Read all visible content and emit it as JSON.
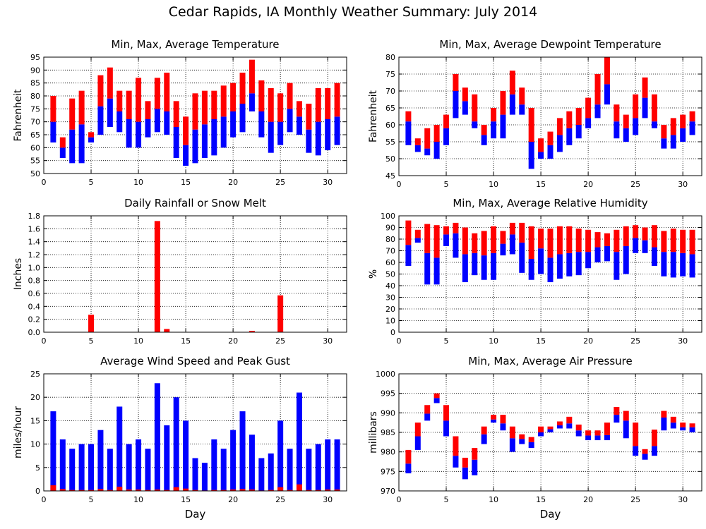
{
  "title": "Cedar Rapids, IA Monthly Weather Summary: July 2014",
  "chart_data": [
    {
      "type": "bar",
      "title": "Min, Max, Average Temperature",
      "ylabel": "Fahrenheit",
      "xlabel": "",
      "xlim": [
        0,
        32
      ],
      "ylim": [
        50,
        95
      ],
      "xticks": [
        0,
        5,
        10,
        15,
        20,
        25,
        30
      ],
      "yticks": [
        50,
        55,
        60,
        65,
        70,
        75,
        80,
        85,
        90,
        95
      ],
      "grid": true,
      "x": [
        1,
        2,
        3,
        4,
        5,
        6,
        7,
        8,
        9,
        10,
        11,
        12,
        13,
        14,
        15,
        16,
        17,
        18,
        19,
        20,
        21,
        22,
        23,
        24,
        25,
        26,
        27,
        28,
        29,
        30,
        31
      ],
      "min": [
        62,
        56,
        54,
        54,
        62,
        65,
        68,
        66,
        60,
        60,
        64,
        66,
        65,
        56,
        53,
        54,
        56,
        57,
        60,
        64,
        66,
        74,
        64,
        58,
        61,
        66,
        65,
        58,
        57,
        59,
        61
      ],
      "avg": [
        70,
        60,
        67,
        69,
        64,
        76,
        79,
        74,
        71,
        70,
        71,
        75,
        74,
        68,
        61,
        67,
        69,
        71,
        72,
        74,
        77,
        81,
        74,
        70,
        70,
        75,
        72,
        67,
        70,
        71,
        72
      ],
      "max": [
        80,
        64,
        79,
        82,
        66,
        88,
        91,
        82,
        82,
        87,
        78,
        87,
        89,
        78,
        72,
        81,
        82,
        82,
        84,
        85,
        89,
        94,
        86,
        83,
        81,
        85,
        78,
        77,
        83,
        83,
        85
      ],
      "colors": {
        "upper": "#ff0000",
        "lower": "#0000ff"
      }
    },
    {
      "type": "bar",
      "title": "Min, Max, Average Dewpoint Temperature",
      "ylabel": "Fahrenheit",
      "xlabel": "",
      "xlim": [
        0,
        32
      ],
      "ylim": [
        45,
        80
      ],
      "xticks": [
        0,
        5,
        10,
        15,
        20,
        25,
        30
      ],
      "yticks": [
        45,
        50,
        55,
        60,
        65,
        70,
        75,
        80
      ],
      "grid": true,
      "x": [
        1,
        2,
        3,
        4,
        5,
        6,
        7,
        8,
        9,
        10,
        11,
        12,
        13,
        14,
        15,
        16,
        17,
        18,
        19,
        20,
        21,
        22,
        23,
        24,
        25,
        26,
        27,
        28,
        29,
        30,
        31
      ],
      "min": [
        54,
        52,
        51,
        50,
        54,
        62,
        63,
        59,
        54,
        56,
        56,
        63,
        63,
        47,
        50,
        50,
        52,
        54,
        56,
        59,
        62,
        66,
        56,
        55,
        57,
        62,
        59,
        53,
        53,
        55,
        57
      ],
      "avg": [
        61,
        54,
        53,
        55,
        59,
        70,
        67,
        61,
        57,
        61,
        63,
        69,
        66,
        55,
        52,
        54,
        57,
        59,
        60,
        62,
        66,
        72,
        61,
        59,
        62,
        68,
        61,
        56,
        57,
        59,
        61
      ],
      "max": [
        64,
        56,
        59,
        60,
        63,
        75,
        71,
        69,
        60,
        65,
        70,
        76,
        71,
        65,
        56,
        58,
        62,
        64,
        65,
        68,
        75,
        80,
        66,
        63,
        69,
        74,
        69,
        60,
        62,
        63,
        64
      ],
      "colors": {
        "upper": "#ff0000",
        "lower": "#0000ff"
      }
    },
    {
      "type": "bar",
      "title": "Daily Rainfall or Snow Melt",
      "ylabel": "Inches",
      "xlabel": "",
      "xlim": [
        0,
        32
      ],
      "ylim": [
        0,
        1.8
      ],
      "xticks": [
        0,
        5,
        10,
        15,
        20,
        25,
        30
      ],
      "yticks": [
        0.0,
        0.2,
        0.4,
        0.6,
        0.8,
        1.0,
        1.2,
        1.4,
        1.6,
        1.8
      ],
      "ytick_labels": [
        "0.0",
        "0.2",
        "0.4",
        "0.6",
        "0.8",
        "1.0",
        "1.2",
        "1.4",
        "1.6",
        "1.8"
      ],
      "grid": true,
      "x": [
        1,
        2,
        3,
        4,
        5,
        6,
        7,
        8,
        9,
        10,
        11,
        12,
        13,
        14,
        15,
        16,
        17,
        18,
        19,
        20,
        21,
        22,
        23,
        24,
        25,
        26,
        27,
        28,
        29,
        30,
        31
      ],
      "values": [
        0,
        0,
        0,
        0,
        0.27,
        0,
        0,
        0,
        0,
        0,
        0,
        1.72,
        0.05,
        0,
        0,
        0,
        0,
        0,
        0,
        0,
        0,
        0.02,
        0,
        0,
        0.57,
        0,
        0,
        0,
        0,
        0,
        0
      ],
      "colors": {
        "bar": "#ff0000"
      }
    },
    {
      "type": "bar",
      "title": "Min, Max, Average Relative Humidity",
      "ylabel": "%",
      "xlabel": "",
      "xlim": [
        0,
        32
      ],
      "ylim": [
        0,
        100
      ],
      "xticks": [
        0,
        5,
        10,
        15,
        20,
        25,
        30
      ],
      "yticks": [
        0,
        10,
        20,
        30,
        40,
        50,
        60,
        70,
        80,
        90,
        100
      ],
      "grid": true,
      "x": [
        1,
        2,
        3,
        4,
        5,
        6,
        7,
        8,
        9,
        10,
        11,
        12,
        13,
        14,
        15,
        16,
        17,
        18,
        19,
        20,
        21,
        22,
        23,
        24,
        25,
        26,
        27,
        28,
        29,
        30,
        31
      ],
      "min": [
        57,
        77,
        41,
        41,
        74,
        64,
        43,
        49,
        45,
        45,
        66,
        67,
        51,
        45,
        50,
        43,
        46,
        48,
        49,
        55,
        60,
        61,
        45,
        50,
        68,
        68,
        57,
        48,
        47,
        48,
        47
      ],
      "avg": [
        75,
        81,
        68,
        64,
        84,
        85,
        67,
        68,
        66,
        68,
        76,
        84,
        77,
        63,
        72,
        64,
        67,
        68,
        69,
        69,
        73,
        74,
        69,
        74,
        81,
        79,
        73,
        69,
        69,
        68,
        67
      ],
      "max": [
        96,
        88,
        93,
        92,
        91,
        94,
        90,
        85,
        87,
        91,
        87,
        94,
        94,
        91,
        89,
        89,
        91,
        91,
        89,
        88,
        86,
        85,
        88,
        91,
        92,
        90,
        92,
        87,
        89,
        88,
        88
      ],
      "colors": {
        "upper": "#ff0000",
        "lower": "#0000ff"
      }
    },
    {
      "type": "bar",
      "title": "Average Wind Speed and Peak Gust",
      "ylabel": "miles/hour",
      "xlabel": "Day",
      "xlim": [
        0,
        32
      ],
      "ylim": [
        0,
        25
      ],
      "xticks": [
        0,
        5,
        10,
        15,
        20,
        25,
        30
      ],
      "yticks": [
        0,
        5,
        10,
        15,
        20,
        25
      ],
      "grid": true,
      "x": [
        1,
        2,
        3,
        4,
        5,
        6,
        7,
        8,
        9,
        10,
        11,
        12,
        13,
        14,
        15,
        16,
        17,
        18,
        19,
        20,
        21,
        22,
        23,
        24,
        25,
        26,
        27,
        28,
        29,
        30,
        31
      ],
      "peak_gust": [
        17,
        11,
        9,
        10,
        10,
        13,
        9,
        18,
        10,
        11,
        9,
        23,
        14,
        20,
        15,
        7,
        6,
        11,
        9,
        13,
        17,
        12,
        7,
        8,
        15,
        9,
        21,
        9,
        10,
        11,
        11
      ],
      "avg_speed": [
        1.2,
        0.4,
        0.2,
        0.2,
        0.2,
        0.4,
        0.2,
        0.9,
        0.3,
        0.3,
        0.2,
        0.3,
        0.2,
        0.8,
        0.5,
        0.2,
        0.1,
        0.2,
        0.2,
        0.3,
        0.4,
        0.3,
        0.1,
        0.2,
        0.8,
        0.2,
        1.4,
        0.2,
        0.2,
        0.3,
        0.3
      ],
      "colors": {
        "gust": "#0000ff",
        "speed": "#ff0000"
      }
    },
    {
      "type": "bar",
      "title": "Min, Max, Average Air Pressure",
      "ylabel": "millibars",
      "xlabel": "Day",
      "xlim": [
        0,
        32
      ],
      "ylim": [
        970,
        1000
      ],
      "xticks": [
        0,
        5,
        10,
        15,
        20,
        25,
        30
      ],
      "yticks": [
        970,
        975,
        980,
        985,
        990,
        995,
        1000
      ],
      "grid": true,
      "x": [
        1,
        2,
        3,
        4,
        5,
        6,
        7,
        8,
        9,
        10,
        11,
        12,
        13,
        14,
        15,
        16,
        17,
        18,
        19,
        20,
        21,
        22,
        23,
        24,
        25,
        26,
        27,
        28,
        29,
        30,
        31
      ],
      "min": [
        974.5,
        980.5,
        988,
        992.5,
        984,
        976,
        973,
        974,
        982,
        987.5,
        985.5,
        980,
        982,
        981,
        984,
        985,
        986,
        986,
        984,
        983,
        983,
        983,
        987.5,
        983.5,
        979,
        978,
        979,
        985.5,
        986,
        985.5,
        985
      ],
      "avg": [
        977,
        984,
        989.8,
        993.8,
        988,
        979,
        976,
        978,
        984.5,
        988.3,
        987.3,
        983.5,
        983.3,
        982.5,
        985,
        985.8,
        986.8,
        987.3,
        985.5,
        984.2,
        984.2,
        984.3,
        989.5,
        988,
        981.5,
        979.5,
        981.5,
        988.8,
        987.5,
        986.3,
        986.3
      ],
      "max": [
        980.5,
        987.5,
        992,
        995,
        992,
        984,
        978.5,
        981,
        986.5,
        989.5,
        989.5,
        986.5,
        984.5,
        983.8,
        986.5,
        986.5,
        987.8,
        989,
        987,
        985.5,
        985.5,
        987.5,
        991.5,
        990.5,
        987.5,
        980.7,
        985.7,
        990.5,
        989,
        987.5,
        987.3
      ],
      "colors": {
        "upper": "#ff0000",
        "lower": "#0000ff"
      }
    }
  ]
}
